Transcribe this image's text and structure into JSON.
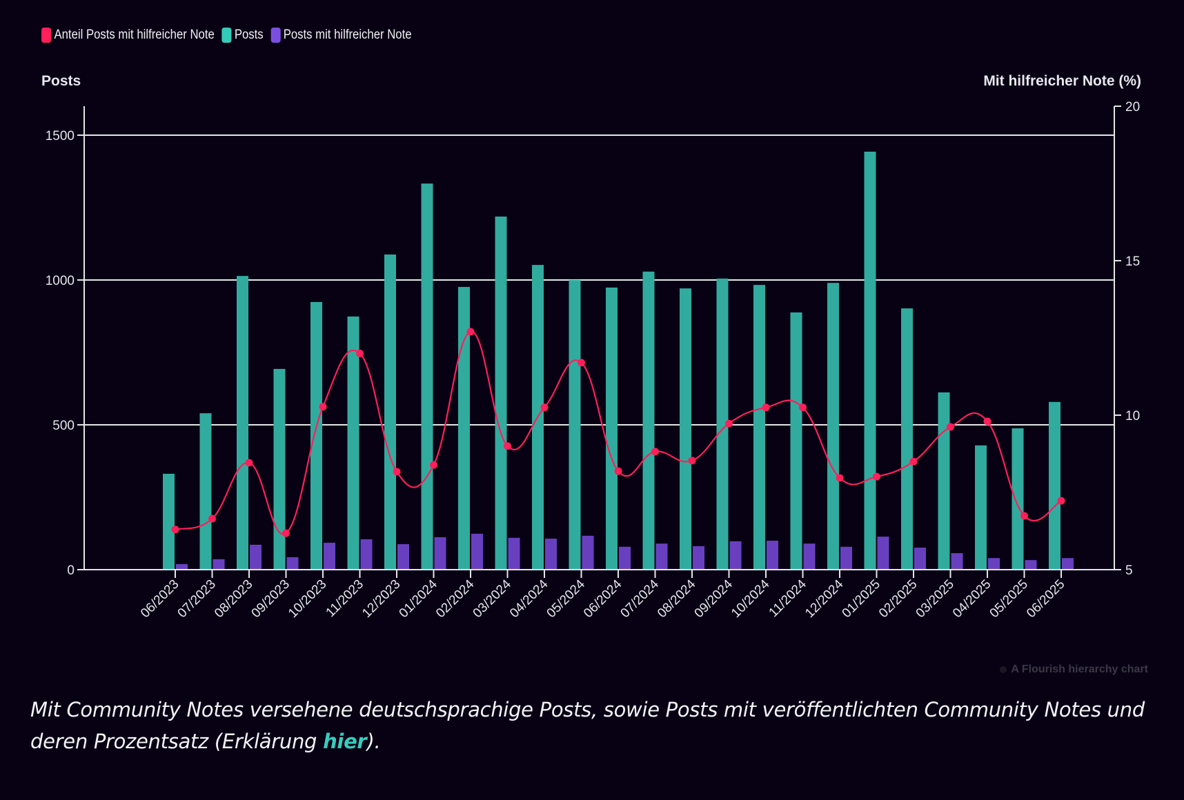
{
  "legend": [
    {
      "label": "Anteil Posts mit hilfreicher Note",
      "color": "#ff1f5a"
    },
    {
      "label": "Posts",
      "color": "#35cbb9"
    },
    {
      "label": "Posts mit hilfreicher Note",
      "color": "#7a4fe0"
    }
  ],
  "axis_titles": {
    "left": "Posts",
    "right": "Mit hilfreicher Note (%)"
  },
  "watermark": "A Flourish hierarchy chart",
  "caption": {
    "text": "Mit Community Notes versehene deutschsprachige Posts, sowie Posts mit veröffentlichten Community Notes und deren Prozentsatz (Erklärung ",
    "link": "hier",
    "suffix": ")."
  },
  "colors": {
    "background": "#080114",
    "posts_bar": "#32ab9f",
    "helpful_bar": "#6840bf",
    "share_line": "#ff1f5a",
    "axis": "#e6e6ea"
  },
  "chart_data": {
    "type": "bar",
    "title": "",
    "xlabel": "",
    "ylabel": "Posts",
    "y2label": "Mit hilfreicher Note (%)",
    "ylim": [
      0,
      1600
    ],
    "y2lim": [
      5,
      20
    ],
    "yticks": [
      0,
      500,
      1000,
      1500
    ],
    "y2ticks": [
      5,
      10,
      15,
      20
    ],
    "grid": true,
    "legend_position": "top-left",
    "categories": [
      "06/2023",
      "07/2023",
      "08/2023",
      "09/2023",
      "10/2023",
      "11/2023",
      "12/2023",
      "01/2024",
      "02/2024",
      "03/2024",
      "04/2024",
      "05/2024",
      "06/2024",
      "07/2024",
      "08/2024",
      "09/2024",
      "10/2024",
      "11/2024",
      "12/2024",
      "01/2025",
      "02/2025",
      "03/2025",
      "04/2025",
      "05/2025",
      "06/2025"
    ],
    "series": [
      {
        "name": "Posts",
        "type": "bar",
        "axis": "left",
        "values": [
          331,
          540,
          1014,
          693,
          924,
          874,
          1088,
          1333,
          976,
          1219,
          1052,
          1000,
          974,
          1029,
          971,
          1005,
          983,
          888,
          990,
          1443,
          902,
          612,
          429,
          488,
          579
        ]
      },
      {
        "name": "Posts mit hilfreicher Note",
        "type": "bar",
        "axis": "left",
        "values": [
          19,
          36,
          86,
          43,
          93,
          105,
          88,
          112,
          124,
          110,
          107,
          117,
          79,
          90,
          81,
          98,
          100,
          90,
          79,
          114,
          76,
          57,
          40,
          33,
          40
        ]
      },
      {
        "name": "Anteil Posts mit hilfreicher Note",
        "type": "line",
        "axis": "right",
        "values": [
          6.3,
          6.65,
          8.46,
          6.18,
          10.27,
          12.0,
          8.17,
          8.39,
          12.7,
          9.0,
          10.25,
          11.7,
          8.19,
          8.82,
          8.53,
          9.73,
          10.25,
          10.25,
          7.97,
          8.01,
          8.5,
          9.62,
          9.8,
          6.74,
          7.23
        ]
      }
    ]
  }
}
